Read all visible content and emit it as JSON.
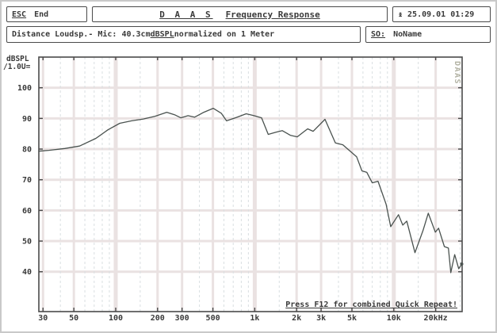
{
  "header": {
    "esc_key": "ESC",
    "esc_label": "End",
    "title_daas": "D A A S",
    "title_main": "Frequency Response",
    "clock_icon": "↨",
    "datetime": "25.09.01 01:29"
  },
  "status": {
    "info_pre": "Distance Loudsp.- Mic: 40.3cm ",
    "info_unit": "dBSPL",
    "info_post": " normalized on 1 Meter",
    "file_key": "SO:",
    "file_name": "NoName"
  },
  "chart_data": {
    "type": "line",
    "title": "Frequency Response",
    "ylabel_line1": "dBSPL",
    "ylabel_line2": "/1.0U=",
    "annotation": "Press F12 for combined Quick Repeat!",
    "watermark": "DAAS",
    "grid": true,
    "x_axis": {
      "scale": "log",
      "min": 28,
      "max": 31000,
      "ticks": [
        30,
        50,
        100,
        200,
        300,
        500,
        1000,
        2000,
        3000,
        5000,
        10000,
        20000
      ],
      "tick_labels": [
        "30",
        "50",
        "100",
        "200",
        "300",
        "500",
        "1k",
        "2k",
        "3k",
        "5k",
        "10k",
        "20kHz"
      ],
      "minor_ticks": [
        40,
        60,
        70,
        80,
        90,
        150,
        400,
        600,
        700,
        800,
        900,
        1500,
        4000,
        6000,
        7000,
        8000,
        9000,
        15000,
        30000
      ]
    },
    "y_axis": {
      "min": 27,
      "max": 110,
      "unit": "dBSPL",
      "ticks": [
        100,
        90,
        80,
        70,
        60,
        50,
        40
      ],
      "tick_labels": [
        "100",
        "90",
        "80",
        "70",
        "60",
        "50",
        "40"
      ]
    },
    "series": [
      {
        "name": "frequency-response",
        "points": [
          [
            28,
            79.3
          ],
          [
            33,
            79.6
          ],
          [
            43,
            80.2
          ],
          [
            55,
            81.0
          ],
          [
            72,
            83.5
          ],
          [
            88,
            86.3
          ],
          [
            107,
            88.4
          ],
          [
            130,
            89.2
          ],
          [
            158,
            89.8
          ],
          [
            192,
            90.7
          ],
          [
            233,
            92.0
          ],
          [
            265,
            91.2
          ],
          [
            294,
            90.2
          ],
          [
            331,
            90.9
          ],
          [
            369,
            90.4
          ],
          [
            430,
            92.0
          ],
          [
            503,
            93.3
          ],
          [
            574,
            91.7
          ],
          [
            627,
            89.2
          ],
          [
            725,
            90.2
          ],
          [
            868,
            91.5
          ],
          [
            988,
            90.9
          ],
          [
            1120,
            90.2
          ],
          [
            1250,
            84.8
          ],
          [
            1420,
            85.5
          ],
          [
            1580,
            86.0
          ],
          [
            1800,
            84.5
          ],
          [
            2020,
            84.0
          ],
          [
            2400,
            86.6
          ],
          [
            2630,
            85.8
          ],
          [
            3200,
            89.7
          ],
          [
            3800,
            82.0
          ],
          [
            4300,
            81.4
          ],
          [
            5400,
            77.5
          ],
          [
            5900,
            72.9
          ],
          [
            6400,
            72.4
          ],
          [
            7000,
            69.0
          ],
          [
            7700,
            69.5
          ],
          [
            8800,
            62.0
          ],
          [
            9500,
            54.7
          ],
          [
            10800,
            58.6
          ],
          [
            11600,
            55.2
          ],
          [
            12400,
            56.5
          ],
          [
            14200,
            46.2
          ],
          [
            16200,
            53.4
          ],
          [
            17700,
            59.1
          ],
          [
            19900,
            52.9
          ],
          [
            21000,
            54.2
          ],
          [
            23100,
            48.2
          ],
          [
            24700,
            47.7
          ],
          [
            25700,
            39.7
          ],
          [
            27400,
            45.6
          ],
          [
            29300,
            41.0
          ],
          [
            30800,
            42.5
          ]
        ]
      }
    ],
    "colors": {
      "curve": "#4a524f",
      "grid_major": "#eae2e2",
      "grid_minor": "#d9dfe1",
      "frame": "#4a4a4a",
      "text": "#3a3a3a",
      "watermark": "#b3b3a4"
    }
  }
}
